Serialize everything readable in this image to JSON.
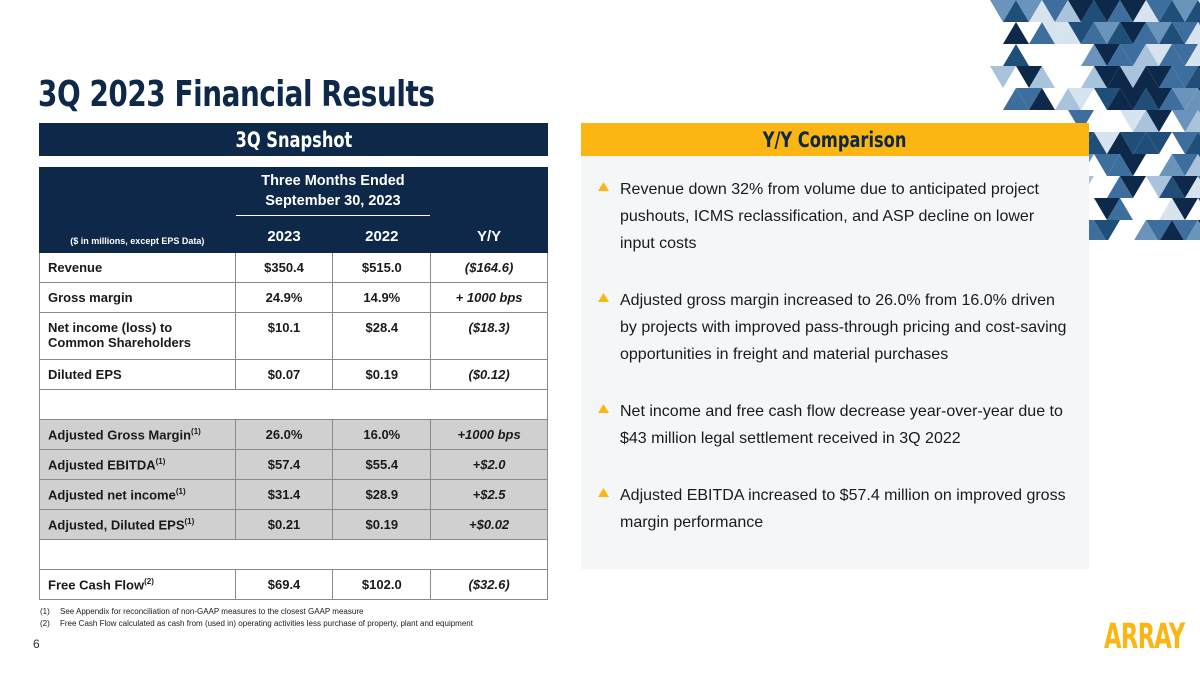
{
  "page": {
    "title": "3Q 2023 Financial Results",
    "page_number": "6",
    "logo_text": "ARRAY"
  },
  "snapshot": {
    "header": "3Q Snapshot",
    "period_label_line1": "Three Months Ended",
    "period_label_line2": "September 30, 2023",
    "units_note": "($ in millions, except EPS Data)",
    "col_2023": "2023",
    "col_2022": "2022",
    "col_yy": "Y/Y",
    "rows": [
      {
        "label": "Revenue",
        "v2023": "$350.4",
        "v2022": "$515.0",
        "yy": "($164.6)"
      },
      {
        "label": "Gross margin",
        "v2023": "24.9%",
        "v2022": "14.9%",
        "yy": "+ 1000 bps"
      },
      {
        "label": "Net income (loss) to Common Shareholders",
        "v2023": "$10.1",
        "v2022": "$28.4",
        "yy": "($18.3)"
      },
      {
        "label": "Diluted EPS",
        "v2023": "$0.07",
        "v2022": "$0.19",
        "yy": "($0.12)"
      }
    ],
    "adjusted_rows": [
      {
        "label": "Adjusted Gross Margin",
        "sup": "(1)",
        "v2023": "26.0%",
        "v2022": "16.0%",
        "yy": "+1000 bps"
      },
      {
        "label": "Adjusted EBITDA",
        "sup": "(1)",
        "v2023": "$57.4",
        "v2022": "$55.4",
        "yy": "+$2.0"
      },
      {
        "label": "Adjusted net income",
        "sup": "(1)",
        "v2023": "$31.4",
        "v2022": "$28.9",
        "yy": "+$2.5"
      },
      {
        "label": "Adjusted, Diluted EPS",
        "sup": "(1)",
        "v2023": "$0.21",
        "v2022": "$0.19",
        "yy": "+$0.02"
      }
    ],
    "fcf_row": {
      "label": "Free Cash Flow",
      "sup": "(2)",
      "v2023": "$69.4",
      "v2022": "$102.0",
      "yy": "($32.6)"
    }
  },
  "comparison": {
    "header": "Y/Y Comparison",
    "bullets": [
      "Revenue down 32% from volume due to anticipated project pushouts, ICMS reclassification, and ASP decline on lower input costs",
      "Adjusted gross margin increased to 26.0% from 16.0% driven by projects with improved pass-through pricing and cost-saving opportunities in freight and material purchases",
      "Net income and free cash flow decrease year-over-year due to $43 million legal settlement received in 3Q 2022",
      "Adjusted EBITDA increased to $57.4 million on improved gross margin performance"
    ]
  },
  "footnotes": [
    {
      "num": "(1)",
      "text": "See Appendix for reconciliation of non-GAAP measures to the closest GAAP measure"
    },
    {
      "num": "(2)",
      "text": "Free Cash Flow calculated as cash from (used in) operating activities less purchase of property, plant and equipment"
    }
  ],
  "colors": {
    "navy": "#0d2848",
    "gold": "#fbb614",
    "panel": "#f5f6f8",
    "grey_row": "#d0d0d0"
  }
}
